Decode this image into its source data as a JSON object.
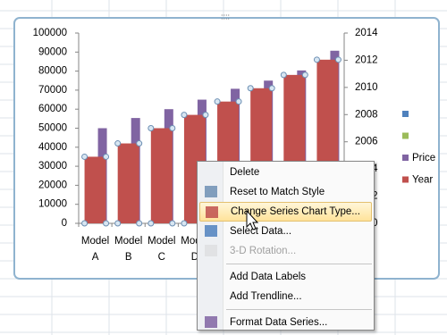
{
  "chart_data": {
    "type": "bar",
    "categories": [
      "Model A",
      "Model B",
      "Model C",
      "Model D",
      null,
      null,
      null,
      null
    ],
    "series": [
      {
        "name": null,
        "color": "#4f81bd",
        "values": [
          null,
          null,
          null,
          null,
          null,
          null,
          null,
          null
        ]
      },
      {
        "name": null,
        "color": "#9bbb59",
        "values": [
          null,
          null,
          null,
          null,
          null,
          null,
          null,
          null
        ]
      },
      {
        "name": "Price",
        "color": "#8064a2",
        "axis": "y2",
        "values": [
          2007,
          2007.75,
          2008.4,
          2009.1,
          2009.9,
          2010.5,
          2011.25,
          2012.7
        ]
      },
      {
        "name": "Year",
        "color": "#c0504d",
        "values": [
          35000,
          42000,
          50000,
          57000,
          64000,
          71000,
          78000,
          86000
        ]
      }
    ],
    "ylim": [
      0,
      100000
    ],
    "yticks": [
      0,
      10000,
      20000,
      30000,
      40000,
      50000,
      60000,
      70000,
      80000,
      90000,
      100000
    ],
    "y2lim": [
      2000,
      2014
    ],
    "y2ticks": [
      2000,
      2002,
      2004,
      2006,
      2008,
      2010,
      2012,
      2014
    ],
    "grid": false,
    "legend": "right"
  },
  "context_menu": {
    "items": [
      {
        "label": "Delete"
      },
      {
        "label": "Reset to Match Style"
      },
      {
        "label": "Change Series Chart Type...",
        "highlighted": true
      },
      {
        "label": "Select Data..."
      },
      {
        "label": "3-D Rotation...",
        "disabled": true,
        "separator_after": true
      },
      {
        "label": "Add Data Labels"
      },
      {
        "label": "Add Trendline...",
        "separator_after": true
      },
      {
        "label": "Format Data Series..."
      }
    ]
  }
}
